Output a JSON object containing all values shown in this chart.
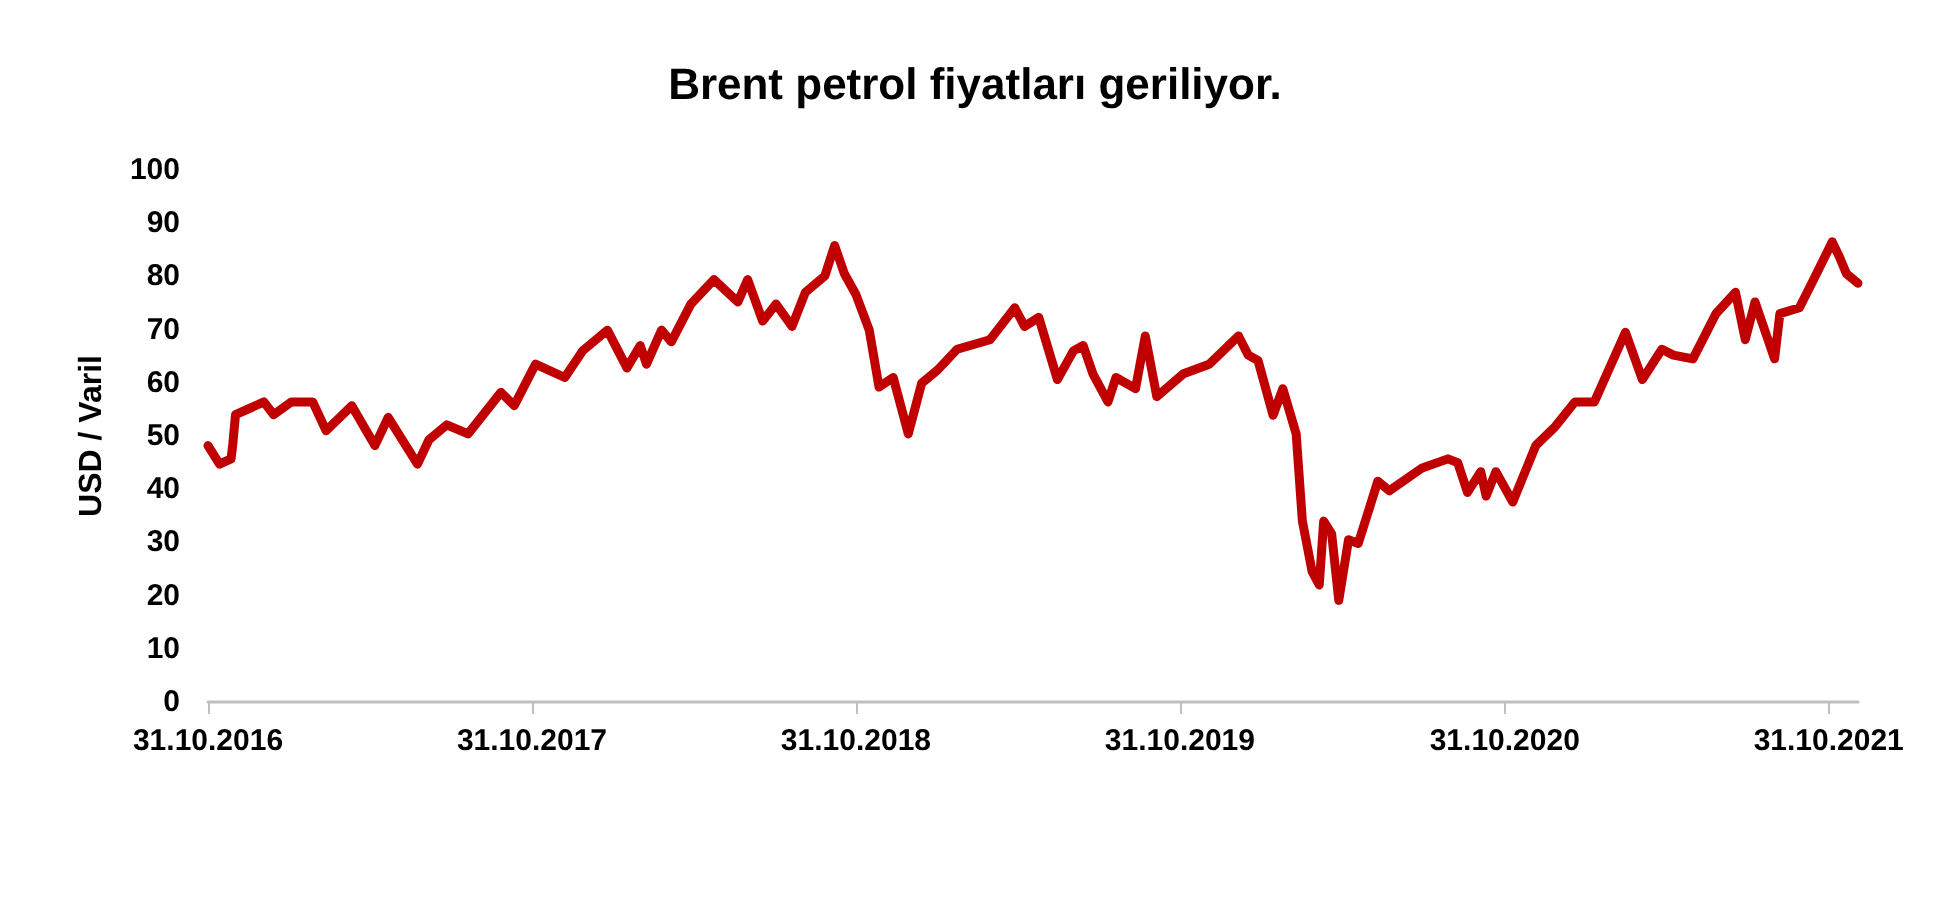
{
  "chart_data": {
    "type": "line",
    "title": "Brent petrol fiyatları geriliyor.",
    "ylabel": "USD / Varil",
    "x": [
      "2016-10-31",
      "2016-11-13",
      "2016-11-26",
      "2016-11-28",
      "2016-12-01",
      "2017-01-02",
      "2017-01-13",
      "2017-02-02",
      "2017-02-26",
      "2017-03-13",
      "2017-04-11",
      "2017-05-07",
      "2017-05-22",
      "2017-06-24",
      "2017-07-07",
      "2017-07-27",
      "2017-08-20",
      "2017-09-26",
      "2017-10-11",
      "2017-11-04",
      "2017-12-07",
      "2017-12-27",
      "2018-01-24",
      "2018-02-15",
      "2018-03-02",
      "2018-03-09",
      "2018-03-26",
      "2018-04-06",
      "2018-04-28",
      "2018-05-24",
      "2018-06-20",
      "2018-07-01",
      "2018-07-18",
      "2018-08-02",
      "2018-08-20",
      "2018-09-04",
      "2018-09-26",
      "2018-10-07",
      "2018-10-18",
      "2018-10-31",
      "2018-11-15",
      "2018-11-26",
      "2018-12-12",
      "2018-12-29",
      "2019-01-13",
      "2019-01-31",
      "2019-02-22",
      "2019-03-31",
      "2019-04-28",
      "2019-05-09",
      "2019-05-25",
      "2019-06-15",
      "2019-07-03",
      "2019-07-14",
      "2019-07-25",
      "2019-08-11",
      "2019-08-20",
      "2019-09-11",
      "2019-09-22",
      "2019-10-05",
      "2019-11-04",
      "2019-12-03",
      "2020-01-05",
      "2020-01-16",
      "2020-01-27",
      "2020-02-13",
      "2020-02-24",
      "2020-03-10",
      "2020-03-17",
      "2020-03-28",
      "2020-04-05",
      "2020-04-10",
      "2020-04-19",
      "2020-04-27",
      "2020-05-08",
      "2020-05-19",
      "2020-06-10",
      "2020-06-23",
      "2020-07-30",
      "2020-08-28",
      "2020-09-08",
      "2020-09-19",
      "2020-10-04",
      "2020-10-10",
      "2020-10-21",
      "2020-11-09",
      "2020-12-05",
      "2020-12-27",
      "2021-01-18",
      "2021-02-09",
      "2021-03-16",
      "2021-04-04",
      "2021-04-26",
      "2021-05-09",
      "2021-05-31",
      "2021-06-26",
      "2021-07-18",
      "2021-07-29",
      "2021-08-09",
      "2021-08-31",
      "2021-09-06",
      "2021-09-28",
      "2021-10-14",
      "2021-11-04",
      "2021-11-12",
      "2021-11-20",
      "2021-12-03"
    ],
    "series": [
      {
        "color": "#c00000",
        "values": [
          48.2,
          44.7,
          45.7,
          48.6,
          54,
          56.4,
          54,
          56.4,
          56.4,
          51,
          55.7,
          48.2,
          53.5,
          44.7,
          49.3,
          52.1,
          50.4,
          58.2,
          55.7,
          63.5,
          61,
          66,
          69.9,
          62.8,
          67,
          63.5,
          69.9,
          67.7,
          74.8,
          79.4,
          75.2,
          79.4,
          71.6,
          74.8,
          70.6,
          77,
          80.1,
          85.8,
          80.5,
          76.6,
          69.9,
          59.2,
          61,
          50.4,
          59.9,
          62.4,
          66.3,
          68.1,
          74.1,
          70.6,
          72.3,
          60.6,
          66,
          67,
          61.7,
          56.4,
          61,
          58.9,
          68.8,
          57.4,
          61.7,
          63.5,
          68.8,
          65.2,
          64.2,
          53.9,
          58.9,
          50.4,
          34,
          24.5,
          22,
          34,
          31.6,
          19.1,
          30.5,
          29.8,
          41.5,
          39.7,
          44,
          45.7,
          45,
          39.4,
          43.3,
          38.7,
          43.3,
          37.6,
          48.2,
          51.8,
          56.4,
          56.4,
          69.5,
          60.6,
          66.3,
          65.2,
          64.5,
          73,
          77,
          68.1,
          75.2,
          64.5,
          73,
          74.1,
          79.4,
          86.5,
          83.7,
          80.5,
          78.7
        ]
      }
    ],
    "xlim": [
      "2016-10-31",
      "2021-12-03"
    ],
    "xticks": [
      {
        "value": "2016-10-31",
        "label": "31.10.2016"
      },
      {
        "value": "2017-10-31",
        "label": "31.10.2017"
      },
      {
        "value": "2018-10-31",
        "label": "31.10.2018"
      },
      {
        "value": "2019-10-31",
        "label": "31.10.2019"
      },
      {
        "value": "2020-10-31",
        "label": "31.10.2020"
      },
      {
        "value": "2021-10-31",
        "label": "31.10.2021"
      }
    ],
    "ylim": [
      0,
      100
    ],
    "yticks": [
      0,
      10,
      20,
      30,
      40,
      50,
      60,
      70,
      80,
      90,
      100
    ],
    "grid": false,
    "marker": "none",
    "line_style": "solid"
  }
}
